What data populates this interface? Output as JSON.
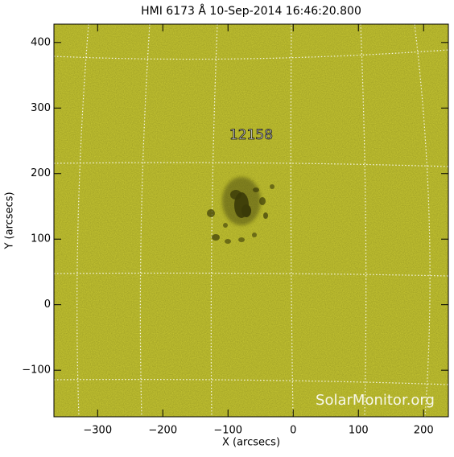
{
  "chart_data": {
    "type": "image",
    "title": "HMI 6173 Å 10-Sep-2014 16:46:20.800",
    "xlabel": "X (arcsecs)",
    "ylabel": "Y (arcsecs)",
    "xlim": [
      -367,
      238
    ],
    "ylim": [
      -171,
      428
    ],
    "xticks": [
      {
        "value": -300,
        "label": "−300"
      },
      {
        "value": -200,
        "label": "−200"
      },
      {
        "value": -100,
        "label": "−100"
      },
      0,
      100,
      200
    ],
    "yticks": [
      {
        "value": -100,
        "label": "−100"
      },
      0,
      100,
      200,
      300,
      400
    ],
    "annotations": [
      "12158"
    ],
    "watermark": "SolarMonitor.org",
    "color": "#c9c935"
  }
}
